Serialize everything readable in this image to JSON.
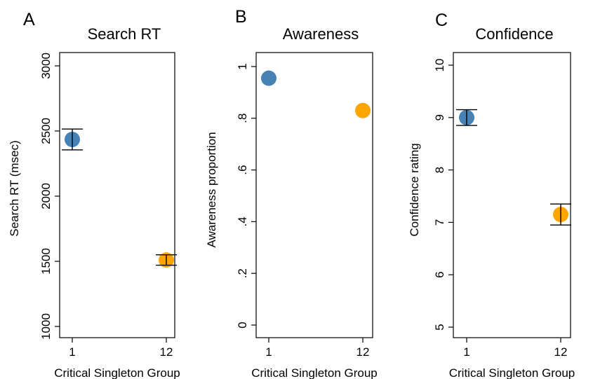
{
  "chart_data": [
    {
      "type": "scatter",
      "panel": "A",
      "title": "Search RT",
      "xlabel": "Critical Singleton Group",
      "ylabel": "Search RT (msec)",
      "categories": [
        "1",
        "12"
      ],
      "ylim": [
        1000,
        3000
      ],
      "yticks": [
        "1000",
        "1500",
        "2000",
        "2500",
        "3000"
      ],
      "ytick_values": [
        1000,
        1500,
        2000,
        2500,
        3000
      ],
      "points": [
        {
          "x": "1",
          "y": 2435,
          "err_low": 2355,
          "err_high": 2515,
          "color": "#4682b4"
        },
        {
          "x": "12",
          "y": 1510,
          "err_low": 1470,
          "err_high": 1550,
          "color": "#ffa500"
        }
      ]
    },
    {
      "type": "scatter",
      "panel": "B",
      "title": "Awareness",
      "xlabel": "Critical Singleton Group",
      "ylabel": "Awareness proportion",
      "categories": [
        "1",
        "12"
      ],
      "ylim": [
        0,
        1
      ],
      "yticks": [
        "0",
        ".2",
        ".4",
        ".6",
        ".8",
        "1"
      ],
      "ytick_values": [
        0,
        0.2,
        0.4,
        0.6,
        0.8,
        1
      ],
      "points": [
        {
          "x": "1",
          "y": 0.955,
          "color": "#4682b4"
        },
        {
          "x": "12",
          "y": 0.83,
          "color": "#ffa500"
        }
      ]
    },
    {
      "type": "scatter",
      "panel": "C",
      "title": "Confidence",
      "xlabel": "Critical Singleton Group",
      "ylabel": "Confidence rating",
      "categories": [
        "1",
        "12"
      ],
      "ylim": [
        5,
        10
      ],
      "yticks": [
        "5",
        "6",
        "7",
        "8",
        "9",
        "10"
      ],
      "ytick_values": [
        5,
        6,
        7,
        8,
        9,
        10
      ],
      "points": [
        {
          "x": "1",
          "y": 9.0,
          "err_low": 8.85,
          "err_high": 9.15,
          "color": "#4682b4"
        },
        {
          "x": "12",
          "y": 7.15,
          "err_low": 6.95,
          "err_high": 7.35,
          "color": "#ffa500"
        }
      ]
    }
  ]
}
